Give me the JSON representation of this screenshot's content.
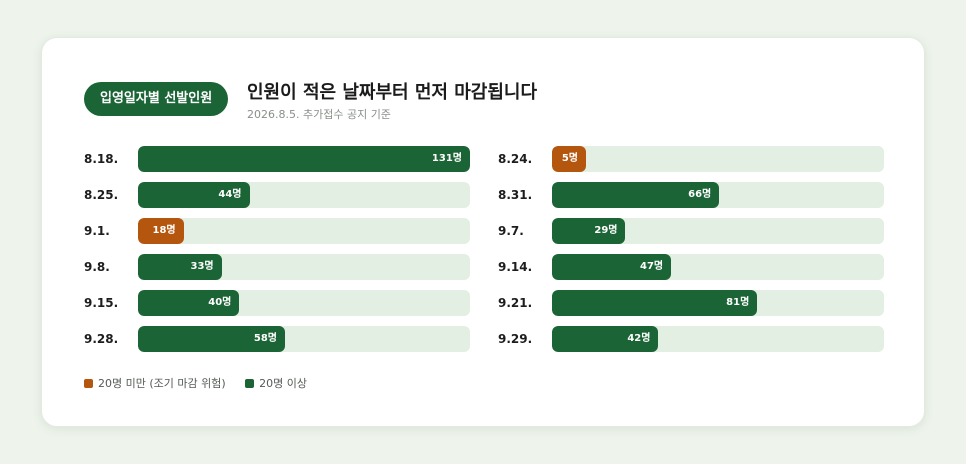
{
  "header": {
    "badge": "입영일자별 선발인원",
    "title": "인원이 적은 날짜부터 먼저 마감됩니다",
    "subtitle": "2026.8.5. 추가접수 공지 기준"
  },
  "colors": {
    "high": "#1b6436",
    "low": "#b5560f",
    "track": "#e3efe2"
  },
  "chart_data": {
    "type": "bar",
    "orientation": "horizontal",
    "unit": "명",
    "threshold": 20,
    "xlim": [
      0,
      131
    ],
    "columns": [
      {
        "categories": [
          "8.18.",
          "8.25.",
          "9.1.",
          "9.8.",
          "9.15.",
          "9.28."
        ],
        "values": [
          131,
          44,
          18,
          33,
          40,
          58
        ],
        "labels": [
          "131명",
          "44명",
          "18명",
          "33명",
          "40명",
          "58명"
        ]
      },
      {
        "categories": [
          "8.24.",
          "8.31.",
          "9.7.",
          "9.14.",
          "9.21.",
          "9.29."
        ],
        "values": [
          5,
          66,
          29,
          47,
          81,
          42
        ],
        "labels": [
          "5명",
          "66명",
          "29명",
          "47명",
          "81명",
          "42명"
        ]
      }
    ],
    "legend": [
      {
        "label": "20명 미만 (조기 마감 위험)",
        "color_key": "low"
      },
      {
        "label": "20명 이상",
        "color_key": "high"
      }
    ]
  }
}
